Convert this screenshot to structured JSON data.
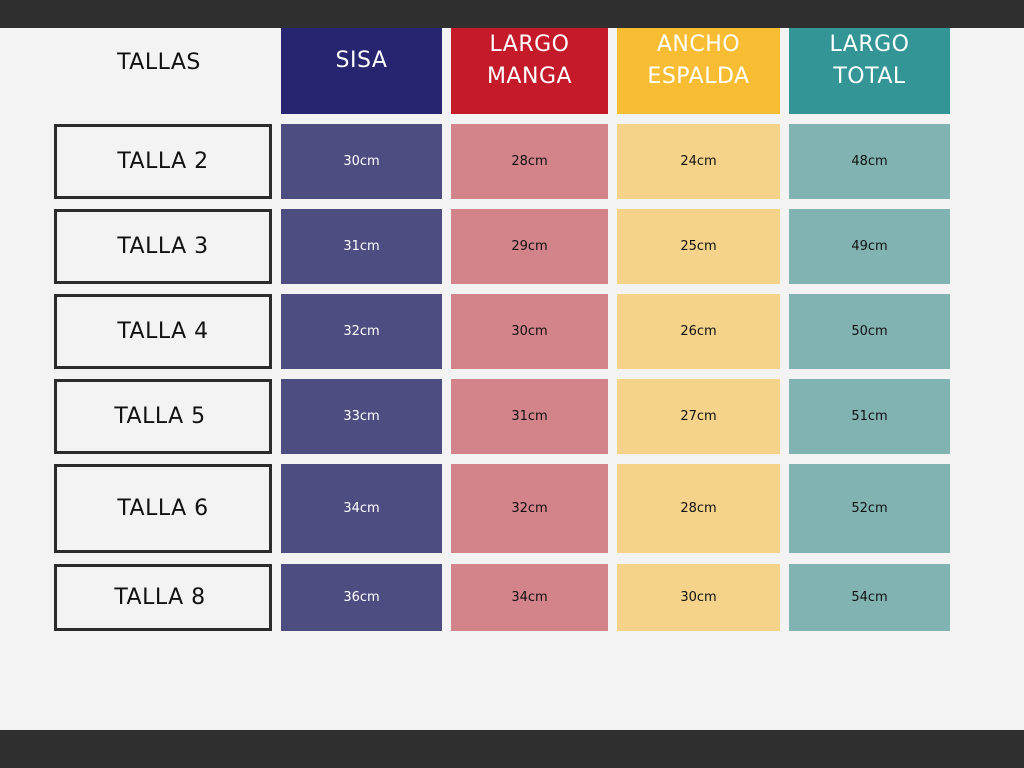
{
  "colors": {
    "sisa_header": "#272570",
    "largo_manga_header": "#c41a2a",
    "ancho_espalda_header": "#f8bd33",
    "largo_total_header": "#339595",
    "sisa_cell": "#4e4d82",
    "largo_manga_cell": "#d3848b",
    "ancho_espalda_cell": "#f5d38b",
    "largo_total_cell": "#82b3b3"
  },
  "table": {
    "sizes_heading": "TALLAS",
    "columns": [
      {
        "label": "SISA"
      },
      {
        "label": "LARGO\nMANGA"
      },
      {
        "label": "ANCHO\nESPALDA"
      },
      {
        "label": "LARGO\nTOTAL"
      }
    ],
    "rows": [
      {
        "size": "TALLA 2",
        "values": [
          "30cm",
          "28cm",
          "24cm",
          "48cm"
        ]
      },
      {
        "size": "TALLA 3",
        "values": [
          "31cm",
          "29cm",
          "25cm",
          "49cm"
        ]
      },
      {
        "size": "TALLA 4",
        "values": [
          "32cm",
          "30cm",
          "26cm",
          "50cm"
        ]
      },
      {
        "size": "TALLA 5",
        "values": [
          "33cm",
          "31cm",
          "27cm",
          "51cm"
        ]
      },
      {
        "size": "TALLA 6",
        "values": [
          "34cm",
          "32cm",
          "28cm",
          "52cm"
        ]
      },
      {
        "size": "TALLA 8",
        "values": [
          "36cm",
          "34cm",
          "30cm",
          "54cm"
        ]
      }
    ]
  }
}
